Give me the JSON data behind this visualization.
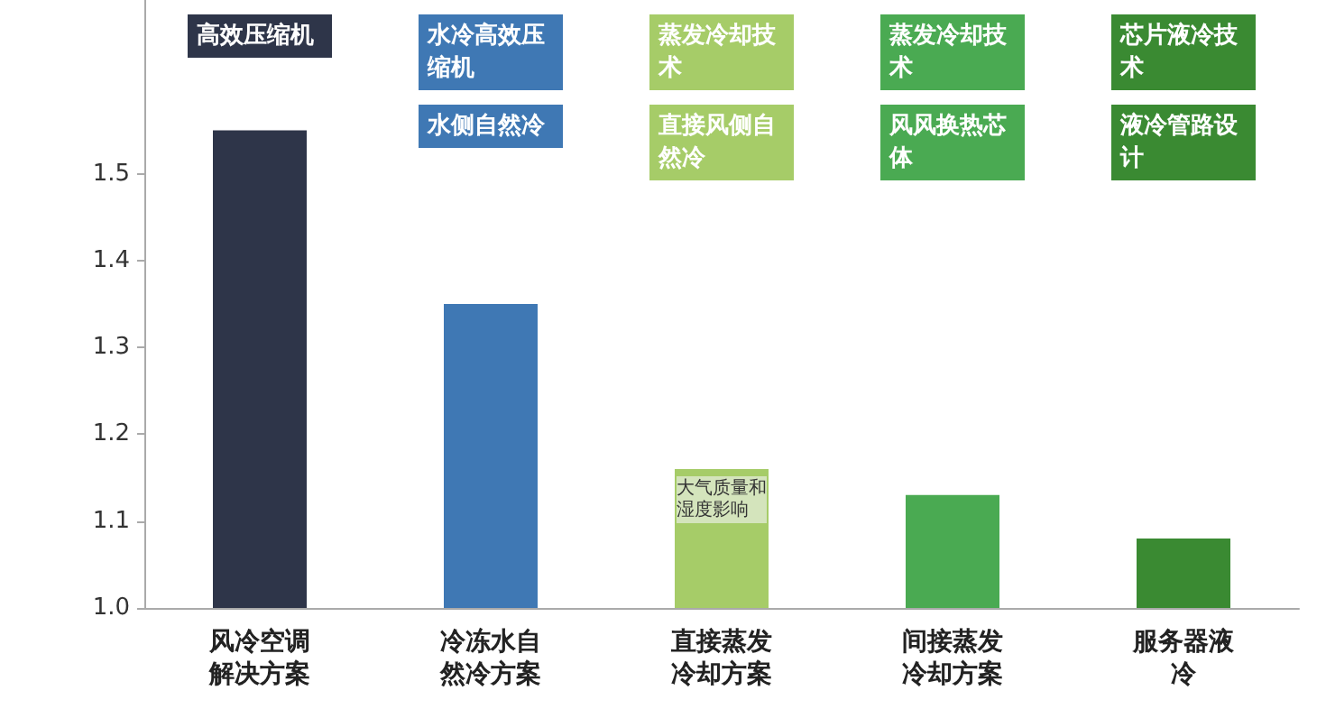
{
  "chart_data": {
    "type": "bar",
    "categories": [
      "风冷空调解决方案",
      "冷冻水自然冷方案",
      "直接蒸发冷却方案",
      "间接蒸发冷却方案",
      "服务器液冷"
    ],
    "values": [
      1.55,
      1.35,
      1.16,
      1.13,
      1.08
    ],
    "colors": [
      "#2e3549",
      "#3f78b4",
      "#a6cc68",
      "#4aaa52",
      "#3a8a32"
    ],
    "ylim": [
      1.0,
      1.7
    ],
    "yticks": [
      {
        "value": 1,
        "label": "1.0"
      },
      1.1,
      1.2,
      1.3,
      1.4,
      1.5
    ],
    "grid": false,
    "annotations": [
      "高效压缩机",
      "水冷高效压缩机",
      "水侧自然冷",
      "蒸发冷却技术",
      "直接风侧自然冷",
      "蒸发冷却技术",
      "风风换热芯体",
      "芯片液冷技术",
      "液冷管路设计",
      "大气质量和湿度影响"
    ]
  }
}
